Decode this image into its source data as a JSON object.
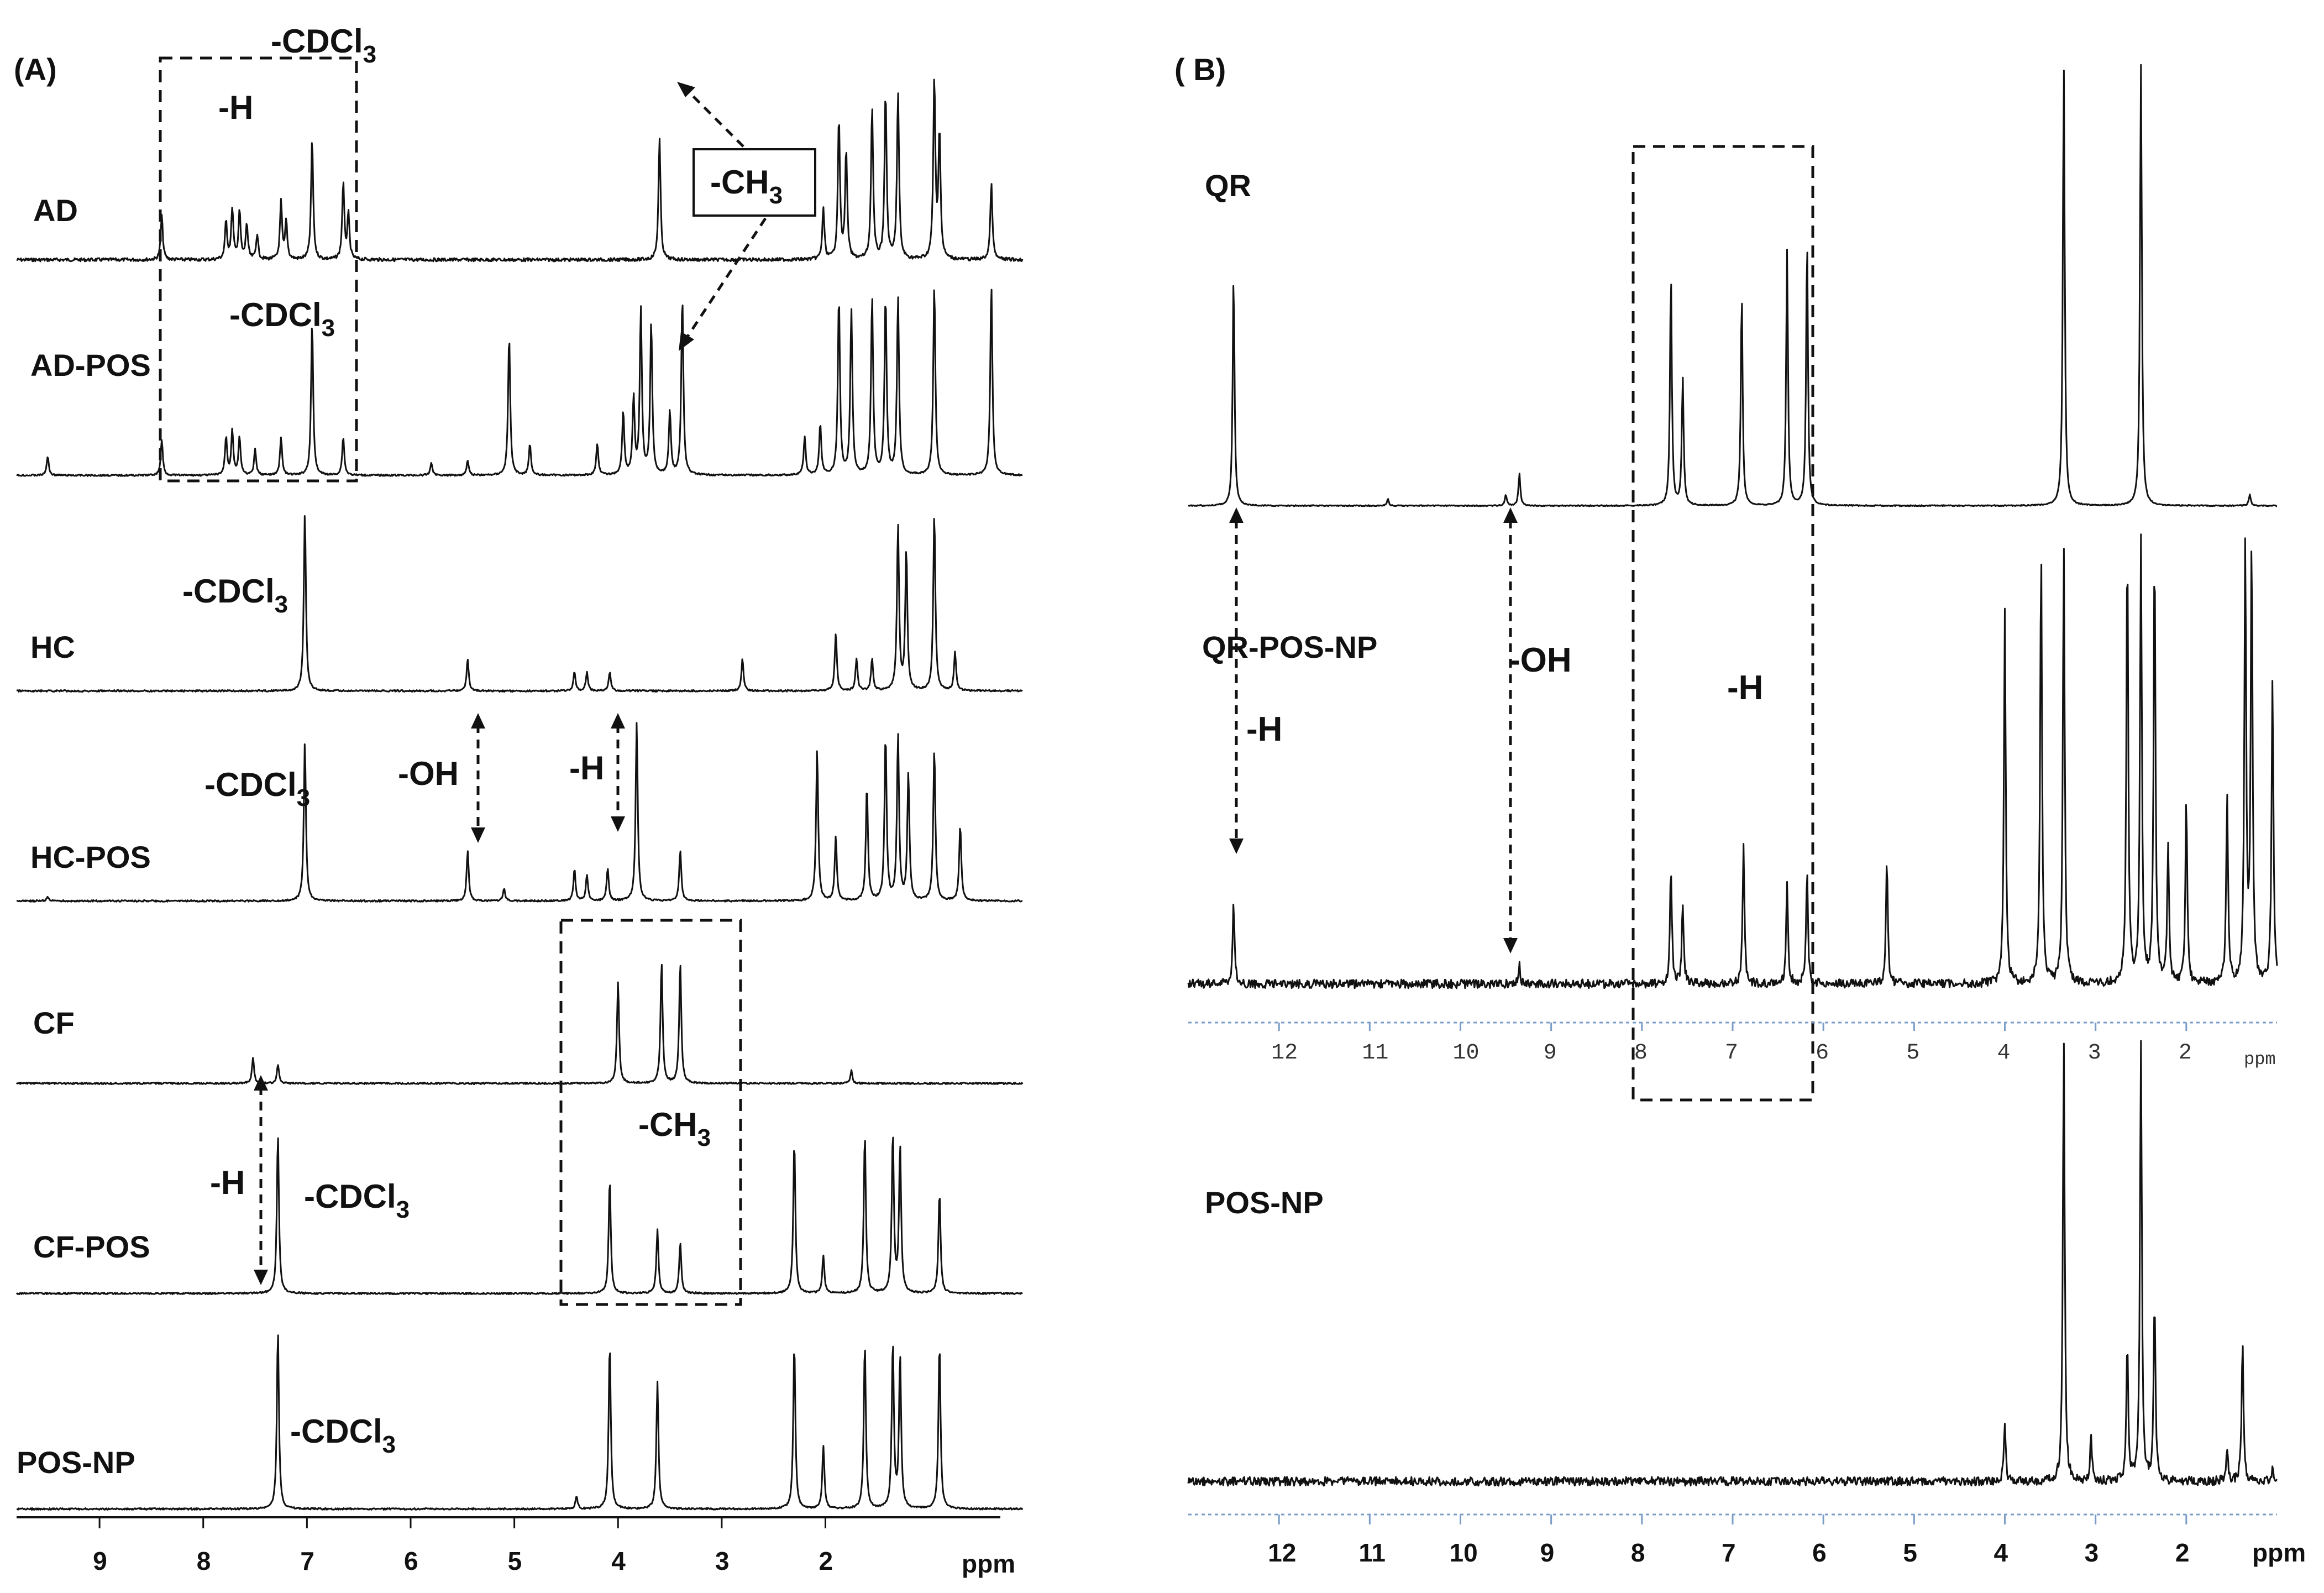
{
  "chart_data": [
    {
      "type": "line",
      "panel": "(A)",
      "title": "(A)",
      "xlabel": "ppm",
      "xlim": [
        9.8,
        0.1
      ],
      "x_ticks": [
        "9",
        "8",
        "7",
        "6",
        "5",
        "4",
        "3",
        "2"
      ],
      "series": [
        {
          "name": "AD",
          "peaks": [
            [
              8.4,
              0.35
            ],
            [
              7.78,
              0.3
            ],
            [
              7.72,
              0.4
            ],
            [
              7.65,
              0.38
            ],
            [
              7.58,
              0.28
            ],
            [
              7.48,
              0.2
            ],
            [
              7.25,
              0.45
            ],
            [
              7.2,
              0.3
            ],
            [
              6.95,
              0.95
            ],
            [
              6.65,
              0.6
            ],
            [
              6.6,
              0.35
            ],
            [
              3.6,
              0.95
            ],
            [
              2.02,
              0.4
            ],
            [
              1.87,
              1.1
            ],
            [
              1.8,
              0.85
            ],
            [
              1.55,
              1.2
            ],
            [
              1.42,
              1.3
            ],
            [
              1.3,
              1.3
            ],
            [
              0.95,
              1.4
            ],
            [
              0.9,
              1.0
            ],
            [
              0.4,
              0.6
            ]
          ]
        },
        {
          "name": "AD-POS",
          "peaks": [
            [
              9.5,
              0.15
            ],
            [
              8.4,
              0.28
            ],
            [
              7.78,
              0.3
            ],
            [
              7.72,
              0.35
            ],
            [
              7.65,
              0.3
            ],
            [
              7.5,
              0.2
            ],
            [
              7.25,
              0.3
            ],
            [
              6.95,
              1.2
            ],
            [
              6.65,
              0.3
            ],
            [
              5.8,
              0.1
            ],
            [
              5.45,
              0.12
            ],
            [
              5.05,
              1.1
            ],
            [
              4.85,
              0.25
            ],
            [
              4.2,
              0.25
            ],
            [
              3.95,
              0.5
            ],
            [
              3.85,
              0.6
            ],
            [
              3.78,
              1.3
            ],
            [
              3.68,
              1.2
            ],
            [
              3.5,
              0.5
            ],
            [
              3.38,
              1.4
            ],
            [
              2.2,
              0.3
            ],
            [
              2.05,
              0.4
            ],
            [
              1.87,
              1.4
            ],
            [
              1.75,
              1.3
            ],
            [
              1.55,
              1.4
            ],
            [
              1.42,
              1.4
            ],
            [
              1.3,
              1.4
            ],
            [
              0.95,
              1.5
            ],
            [
              0.4,
              1.5
            ]
          ]
        },
        {
          "name": "HC",
          "peaks": [
            [
              7.02,
              1.4
            ],
            [
              5.45,
              0.25
            ],
            [
              4.42,
              0.15
            ],
            [
              4.3,
              0.15
            ],
            [
              4.08,
              0.15
            ],
            [
              2.8,
              0.25
            ],
            [
              1.9,
              0.45
            ],
            [
              1.7,
              0.25
            ],
            [
              1.55,
              0.25
            ],
            [
              1.3,
              1.3
            ],
            [
              1.22,
              1.1
            ],
            [
              0.95,
              1.4
            ],
            [
              0.75,
              0.3
            ]
          ]
        },
        {
          "name": "HC-POS",
          "peaks": [
            [
              9.5,
              0.03
            ],
            [
              7.02,
              1.25
            ],
            [
              5.45,
              0.4
            ],
            [
              5.1,
              0.1
            ],
            [
              4.42,
              0.25
            ],
            [
              4.3,
              0.2
            ],
            [
              4.1,
              0.25
            ],
            [
              3.82,
              1.4
            ],
            [
              3.4,
              0.4
            ],
            [
              2.08,
              1.2
            ],
            [
              1.9,
              0.5
            ],
            [
              1.6,
              0.9
            ],
            [
              1.42,
              1.3
            ],
            [
              1.3,
              1.3
            ],
            [
              1.2,
              1.0
            ],
            [
              0.95,
              1.2
            ],
            [
              0.7,
              0.6
            ]
          ]
        },
        {
          "name": "CF",
          "peaks": [
            [
              7.52,
              0.2
            ],
            [
              7.28,
              0.15
            ],
            [
              4.0,
              0.8
            ],
            [
              3.58,
              0.95
            ],
            [
              3.4,
              0.95
            ],
            [
              1.75,
              0.1
            ]
          ]
        },
        {
          "name": "CF-POS",
          "peaks": [
            [
              7.28,
              1.25
            ],
            [
              4.08,
              0.9
            ],
            [
              3.62,
              0.5
            ],
            [
              3.4,
              0.4
            ],
            [
              2.3,
              1.2
            ],
            [
              2.02,
              0.3
            ],
            [
              1.62,
              1.25
            ],
            [
              1.35,
              1.25
            ],
            [
              1.28,
              1.15
            ],
            [
              0.9,
              0.8
            ]
          ]
        },
        {
          "name": "POS-NP",
          "peaks": [
            [
              7.28,
              1.4
            ],
            [
              4.4,
              0.1
            ],
            [
              4.08,
              1.3
            ],
            [
              3.62,
              1.0
            ],
            [
              2.3,
              1.3
            ],
            [
              2.02,
              0.5
            ],
            [
              1.62,
              1.3
            ],
            [
              1.35,
              1.3
            ],
            [
              1.28,
              1.2
            ],
            [
              0.9,
              1.3
            ]
          ]
        }
      ],
      "annotations": [
        "-CDCl3",
        "-H",
        "-CH3",
        "-OH"
      ]
    },
    {
      "type": "line",
      "panel": "(B)",
      "title": "( B)",
      "xlabel": "ppm",
      "xlim": [
        13.0,
        1.0
      ],
      "x_ticks_inner": [
        "12",
        "11",
        "10",
        "9",
        "8",
        "7",
        "6",
        "5",
        "4",
        "3",
        "2"
      ],
      "x_ticks_bottom": [
        "12",
        "11",
        "10",
        "9",
        "8",
        "7",
        "6",
        "5",
        "4",
        "3",
        "2"
      ],
      "series": [
        {
          "name": "QR",
          "peaks": [
            [
              12.5,
              1.0
            ],
            [
              10.8,
              0.03
            ],
            [
              9.5,
              0.05
            ],
            [
              9.35,
              0.14
            ],
            [
              7.68,
              1.0
            ],
            [
              7.55,
              0.55
            ],
            [
              6.9,
              0.92
            ],
            [
              6.4,
              1.1
            ],
            [
              6.18,
              1.15
            ],
            [
              3.35,
              1.9
            ],
            [
              2.5,
              1.9
            ],
            [
              1.3,
              0.05
            ]
          ]
        },
        {
          "name": "QR-POS-NP",
          "peaks": [
            [
              12.5,
              0.35
            ],
            [
              9.35,
              0.08
            ],
            [
              7.68,
              0.5
            ],
            [
              7.55,
              0.35
            ],
            [
              6.88,
              0.6
            ],
            [
              6.4,
              0.45
            ],
            [
              6.18,
              0.48
            ],
            [
              5.3,
              0.55
            ],
            [
              4.0,
              1.6
            ],
            [
              3.6,
              1.9
            ],
            [
              3.35,
              1.9
            ],
            [
              2.65,
              1.9
            ],
            [
              2.5,
              1.9
            ],
            [
              2.35,
              1.9
            ],
            [
              2.2,
              0.6
            ],
            [
              2.0,
              0.8
            ],
            [
              1.55,
              0.8
            ],
            [
              1.35,
              1.9
            ],
            [
              1.28,
              1.9
            ],
            [
              1.05,
              1.3
            ]
          ]
        },
        {
          "name": "POS-NP",
          "peaks": [
            [
              4.0,
              0.25
            ],
            [
              3.35,
              1.9
            ],
            [
              3.05,
              0.2
            ],
            [
              2.65,
              0.6
            ],
            [
              2.5,
              1.9
            ],
            [
              2.35,
              0.8
            ],
            [
              1.55,
              0.15
            ],
            [
              1.38,
              0.6
            ],
            [
              1.05,
              0.05
            ]
          ]
        }
      ],
      "annotations": [
        "-OH",
        "-H"
      ]
    }
  ],
  "panelA": {
    "label": "(A)",
    "spectra_labels": {
      "ad": "AD",
      "ad_pos": "AD-POS",
      "hc": "HC",
      "hc_pos": "HC-POS",
      "cf": "CF",
      "cf_pos": "CF-POS",
      "pos_np": "POS-NP"
    },
    "cdcl3": "-CDCl",
    "cdcl3_sub": "3",
    "h": "-H",
    "ch3": "-CH",
    "ch3_sub": "3",
    "oh": "-OH",
    "axis_unit": "ppm"
  },
  "panelB": {
    "label": "( B)",
    "spectra_labels": {
      "qr": "QR",
      "qr_pos_np": "QR-POS-NP",
      "pos_np": "POS-NP"
    },
    "oh": "-OH",
    "h": "-H",
    "axis_unit": "ppm"
  },
  "colors": {
    "ink": "#111111",
    "axis_b": "#7a9cc6"
  }
}
